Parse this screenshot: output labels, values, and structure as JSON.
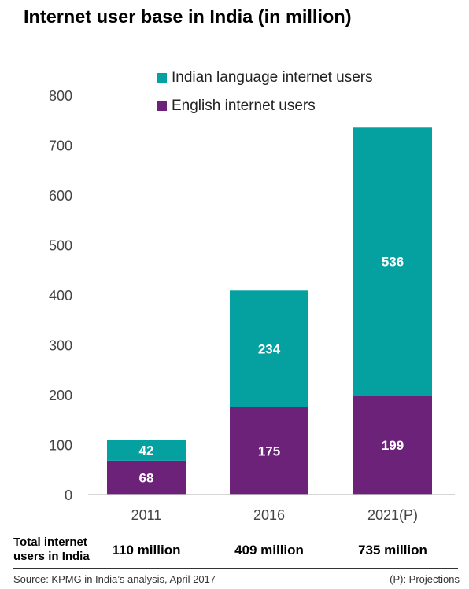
{
  "chart_data": {
    "type": "bar",
    "stacked": true,
    "title": "Internet user base in India (in million)",
    "categories": [
      "2011",
      "2016",
      "2021(P)"
    ],
    "series": [
      {
        "name": "English internet users",
        "values": [
          68,
          175,
          199
        ],
        "color": "#6b2278"
      },
      {
        "name": "Indian language internet users",
        "values": [
          42,
          234,
          536
        ],
        "color": "#05a0a0"
      }
    ],
    "ylim": [
      0,
      800
    ],
    "yticks": [
      0,
      100,
      200,
      300,
      400,
      500,
      600,
      700,
      800
    ],
    "grid": false,
    "legend_position": "top"
  },
  "totals": {
    "label_line1": "Total internet",
    "label_line2": "users in India",
    "values": [
      "110 million",
      "409 million",
      "735 million"
    ]
  },
  "footer": {
    "source": "Source: KPMG in India’s analysis, April 2017",
    "note": "(P): Projections"
  }
}
